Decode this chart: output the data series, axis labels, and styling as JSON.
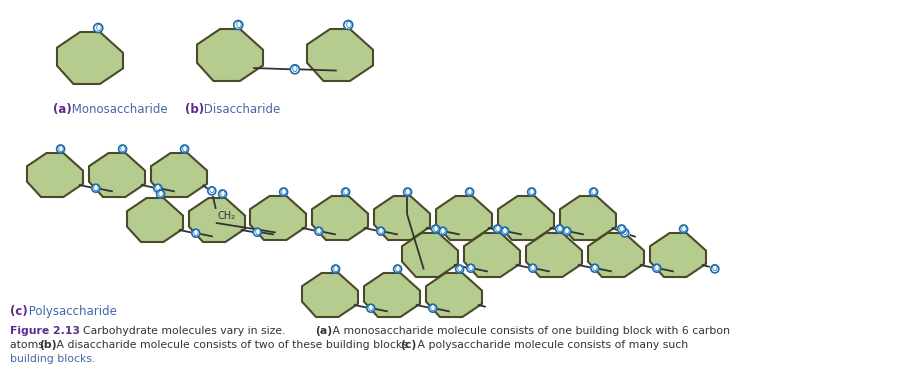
{
  "bg_color": "#ffffff",
  "hex_fill": "#b5cc8e",
  "hex_edge": "#4a4a2a",
  "o_color": "#1a6cb0",
  "o_fill": "#ffffff",
  "bond_color": "#333333",
  "label_bold_color": "#5b2d8e",
  "label_normal_color": "#4466aa",
  "fig_caption_bold": "Figure 2.13",
  "fig_caption_rest": "  Carbohydrate molecules vary in size. ",
  "fig_caption_a_bold": "(a)",
  "fig_caption_a": " A monosaccharide molecule consists of one building block with 6 carbon",
  "fig_caption_b_bold": "(b)",
  "fig_caption_b": " A disaccharide molecule consists of two of these building blocks. ",
  "fig_caption_c_bold": "(c)",
  "fig_caption_c": " A polysaccharide molecule consists of many such",
  "ch2_label": "CH₂",
  "label_a_bold": "(a)",
  "label_a_text": " Monosaccharide",
  "label_b_bold": "(b)",
  "label_b_text": " Disaccharide",
  "label_c_bold": "(c)",
  "label_c_text": " Polysaccharide"
}
